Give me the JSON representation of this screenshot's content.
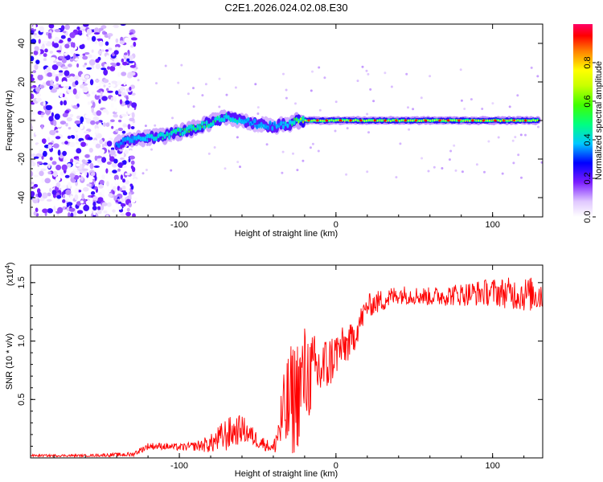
{
  "figure_title": "C2E1.2026.024.02.08.E30",
  "chart_data": [
    {
      "type": "heatmap",
      "title": "C2E1.2026.024.02.08.E30",
      "xlabel": "Height of straight line (km)",
      "ylabel": "Frequency (Hz)",
      "xlim": [
        -195,
        132
      ],
      "ylim": [
        -50,
        50
      ],
      "x_ticks": [
        -100,
        0,
        100
      ],
      "y_ticks": [
        -40,
        -20,
        0,
        20,
        40
      ],
      "colorbar": {
        "label": "Normalized spectral amplitude",
        "range": [
          0,
          1
        ],
        "ticks": [
          0.0,
          0.2,
          0.4,
          0.6,
          0.8
        ],
        "tick_labels": [
          "0.0",
          "0.2",
          "0.4",
          "0.6",
          "0.8"
        ]
      },
      "ridge": {
        "x": [
          -140,
          -130,
          -120,
          -110,
          -100,
          -90,
          -80,
          -70,
          -60,
          -50,
          -40,
          -30,
          -25,
          -20,
          0,
          50,
          100,
          130
        ],
        "frequency": [
          -12,
          -10,
          -9,
          -8,
          -6,
          -4,
          -1,
          2,
          0,
          -2,
          -3,
          -2,
          0,
          0,
          0,
          0,
          0,
          0
        ],
        "amplitude": [
          0.28,
          0.35,
          0.42,
          0.48,
          0.52,
          0.55,
          0.5,
          0.45,
          0.4,
          0.35,
          0.35,
          0.4,
          0.6,
          0.7,
          0.72,
          0.75,
          0.78,
          0.75
        ]
      },
      "noise_region_x": [
        -195,
        -128
      ]
    },
    {
      "type": "line",
      "xlabel": "Height of straight line (km)",
      "ylabel": "SNR (10 * v/v)",
      "y_multiplier": "(x10",
      "y_multiplier_exp": "4",
      "xlim": [
        -195,
        132
      ],
      "ylim": [
        0,
        1.65
      ],
      "x_ticks": [
        -100,
        0,
        100
      ],
      "y_ticks": [
        0.5,
        1.0,
        1.5
      ],
      "y_tick_labels": [
        "0.5",
        "1.0",
        "1.5"
      ],
      "color": "#ff0000",
      "series": [
        {
          "name": "SNR",
          "x": [
            -195,
            -160,
            -130,
            -120,
            -110,
            -100,
            -90,
            -80,
            -70,
            -60,
            -50,
            -40,
            -35,
            -30,
            -25,
            -20,
            -15,
            -10,
            -5,
            0,
            10,
            20,
            30,
            40,
            60,
            80,
            100,
            120,
            132
          ],
          "mean": [
            0.02,
            0.02,
            0.03,
            0.1,
            0.1,
            0.09,
            0.1,
            0.12,
            0.2,
            0.25,
            0.15,
            0.08,
            0.3,
            0.45,
            0.55,
            0.7,
            0.72,
            0.75,
            0.8,
            0.9,
            1.0,
            1.3,
            1.35,
            1.4,
            1.38,
            1.4,
            1.42,
            1.4,
            1.4
          ],
          "spread": [
            0.01,
            0.01,
            0.02,
            0.03,
            0.03,
            0.03,
            0.04,
            0.08,
            0.15,
            0.12,
            0.07,
            0.04,
            0.3,
            0.5,
            0.5,
            0.45,
            0.35,
            0.3,
            0.25,
            0.2,
            0.15,
            0.1,
            0.1,
            0.08,
            0.08,
            0.1,
            0.12,
            0.15,
            0.15
          ]
        }
      ]
    }
  ]
}
